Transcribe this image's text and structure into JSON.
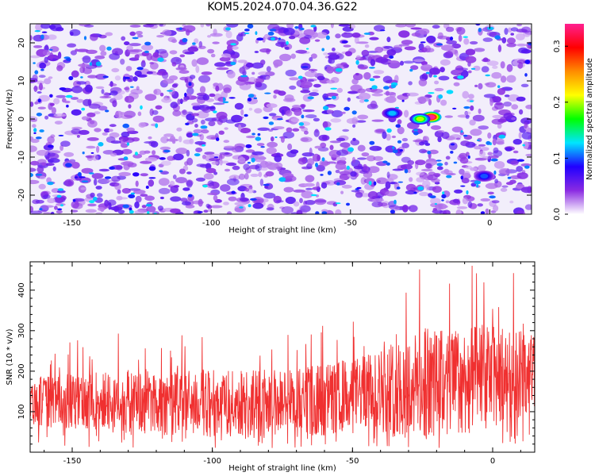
{
  "title": "KOM5.2024.070.04.36.G22",
  "colors": {
    "snr_line": "#f03030",
    "colorbar_stops": [
      "#ffffff",
      "#8a2be2",
      "#2000ff",
      "#00e5ff",
      "#00ff00",
      "#ffff00",
      "#ff8c00",
      "#ff0000",
      "#ff2090"
    ]
  },
  "chart_data": [
    {
      "type": "heatmap",
      "title": "KOM5.2024.070.04.36.G22",
      "xlabel": "Height of straight line (km)",
      "ylabel": "Frequency (Hz)",
      "xlim": [
        -165,
        15
      ],
      "ylim": [
        -25,
        25
      ],
      "x_ticks": [
        -150,
        -100,
        -50,
        0
      ],
      "y_ticks": [
        -20,
        -10,
        0,
        10,
        20
      ],
      "colorbar": {
        "label": "Normalized spectral amplitude",
        "range": [
          0.0,
          0.34
        ],
        "ticks": [
          0.0,
          0.1,
          0.2,
          0.3
        ],
        "tick_labels": [
          "0.0",
          "0.1",
          "0.2",
          "0.3"
        ]
      },
      "background_level": 0.05,
      "peaks": [
        {
          "x": -21,
          "y": 0.5,
          "value": 0.34
        },
        {
          "x": -25,
          "y": 0.0,
          "value": 0.2
        },
        {
          "x": -35,
          "y": 1.5,
          "value": 0.12
        },
        {
          "x": -2,
          "y": -15,
          "value": 0.1
        }
      ]
    },
    {
      "type": "line",
      "xlabel": "Height of straight line (km)",
      "ylabel": "SNR (10 * v/v)",
      "xlim": [
        -165,
        15
      ],
      "ylim": [
        0,
        470
      ],
      "x_ticks": [
        -150,
        -100,
        -50,
        0
      ],
      "y_ticks": [
        100,
        200,
        300,
        400
      ],
      "trend": [
        [
          -165,
          125
        ],
        [
          -120,
          125
        ],
        [
          -90,
          120
        ],
        [
          -60,
          130
        ],
        [
          -45,
          150
        ],
        [
          -20,
          170
        ],
        [
          0,
          185
        ],
        [
          15,
          200
        ]
      ],
      "envelope_max": [
        [
          -165,
          260
        ],
        [
          -120,
          310
        ],
        [
          -90,
          300
        ],
        [
          -60,
          330
        ],
        [
          -45,
          350
        ],
        [
          -30,
          460
        ],
        [
          -20,
          470
        ],
        [
          0,
          470
        ],
        [
          15,
          420
        ]
      ]
    }
  ]
}
